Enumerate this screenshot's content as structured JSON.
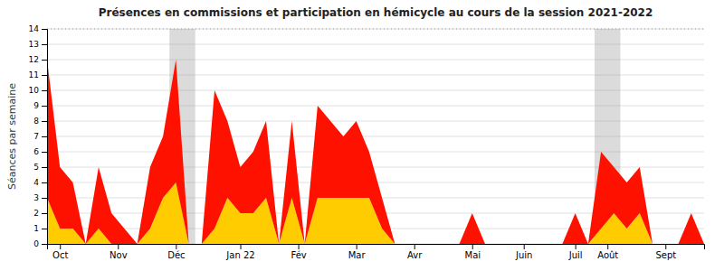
{
  "chart_data": {
    "type": "area",
    "stacked": true,
    "title": "Présences en commissions et participation en hémicycle au cours de la session 2021-2022",
    "ylabel": "Séances par semaine",
    "x": [
      0,
      1,
      2,
      3,
      4,
      5,
      6,
      7,
      8,
      9,
      10,
      11,
      12,
      13,
      14,
      15,
      16,
      17,
      18,
      19,
      20,
      21,
      22,
      23,
      24,
      25,
      26,
      27,
      28,
      29,
      30,
      31,
      32,
      33,
      34,
      35,
      36,
      37,
      38,
      39,
      40,
      41,
      42,
      43,
      44,
      45,
      46,
      47,
      48,
      49,
      50,
      51
    ],
    "xlim": [
      0,
      51
    ],
    "xticks": [
      {
        "value": 1,
        "label": "Oct"
      },
      {
        "value": 5.5,
        "label": "Nov"
      },
      {
        "value": 10,
        "label": "Déc"
      },
      {
        "value": 15,
        "label": "Jan 22"
      },
      {
        "value": 19.5,
        "label": "Fév"
      },
      {
        "value": 24,
        "label": "Mar"
      },
      {
        "value": 28.5,
        "label": "Avr"
      },
      {
        "value": 33,
        "label": "Mai"
      },
      {
        "value": 37,
        "label": "Juin"
      },
      {
        "value": 41,
        "label": "Juil"
      },
      {
        "value": 43.5,
        "label": "Août"
      },
      {
        "value": 48,
        "label": "Sept"
      }
    ],
    "ylim": [
      0,
      14
    ],
    "yticks": [
      0,
      1,
      2,
      3,
      4,
      5,
      6,
      7,
      8,
      9,
      10,
      11,
      12,
      13,
      14
    ],
    "grid": true,
    "bands": [
      [
        9.5,
        11.5
      ],
      [
        42.5,
        44.5
      ]
    ],
    "hlines": [
      14
    ],
    "series": [
      {
        "color": "#22bb00",
        "values": [
          0,
          0,
          0,
          0,
          0,
          0,
          0,
          0,
          0,
          0,
          0,
          0,
          0,
          0,
          0,
          0,
          0,
          0,
          0,
          0,
          0,
          0,
          0,
          0,
          0,
          0,
          0,
          0,
          0,
          0,
          0,
          0,
          0,
          0,
          0,
          0,
          0,
          0,
          0,
          0,
          0,
          0,
          0,
          0,
          0,
          0,
          0,
          0,
          0,
          0,
          0,
          0
        ]
      },
      {
        "color": "#ffcc00",
        "values": [
          3,
          1,
          1,
          0,
          1,
          0,
          0,
          0,
          1,
          3,
          4,
          0,
          0,
          1,
          3,
          2,
          2,
          3,
          0,
          3,
          0,
          3,
          3,
          3,
          3,
          3,
          1,
          0,
          0,
          0,
          0,
          0,
          0,
          0,
          0,
          0,
          0,
          0,
          0,
          0,
          0,
          0,
          0,
          1,
          2,
          1,
          2,
          0,
          0,
          0,
          0,
          0
        ]
      },
      {
        "color": "#ff1100",
        "values": [
          9,
          4,
          3,
          0,
          4,
          2,
          1,
          0,
          4,
          4,
          8,
          0,
          0,
          9,
          5,
          3,
          4,
          5,
          0,
          5,
          0,
          6,
          5,
          4,
          5,
          3,
          2,
          0,
          0,
          0,
          0,
          0,
          0,
          2,
          0,
          0,
          0,
          0,
          0,
          0,
          0,
          2,
          0,
          5,
          3,
          3,
          3,
          0,
          0,
          0,
          2,
          0
        ]
      }
    ]
  }
}
